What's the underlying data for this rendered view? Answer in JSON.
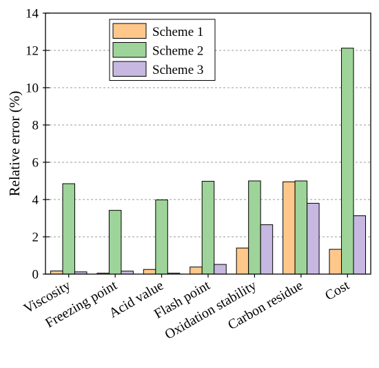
{
  "chart_data": {
    "type": "bar",
    "title": "",
    "xlabel": "",
    "ylabel": "Relative error (%)",
    "ylim": [
      0,
      14
    ],
    "yticks": [
      0,
      2,
      4,
      6,
      8,
      10,
      12,
      14
    ],
    "grid": true,
    "legend_position": "top-center",
    "categories": [
      "Viscosity",
      "Freezing point",
      "Acid value",
      "Flash point",
      "Oxidation stability",
      "Carbon residue",
      "Cost"
    ],
    "series": [
      {
        "name": "Scheme 1",
        "color": "#FFC88A",
        "values": [
          0.17,
          0.05,
          0.25,
          0.38,
          1.4,
          4.95,
          1.33
        ]
      },
      {
        "name": "Scheme 2",
        "color": "#9ED39A",
        "values": [
          4.85,
          3.42,
          3.98,
          4.98,
          5.0,
          5.0,
          12.12
        ]
      },
      {
        "name": "Scheme 3",
        "color": "#C6B8E0",
        "values": [
          0.12,
          0.16,
          0.05,
          0.52,
          2.65,
          3.8,
          3.13
        ]
      }
    ]
  }
}
